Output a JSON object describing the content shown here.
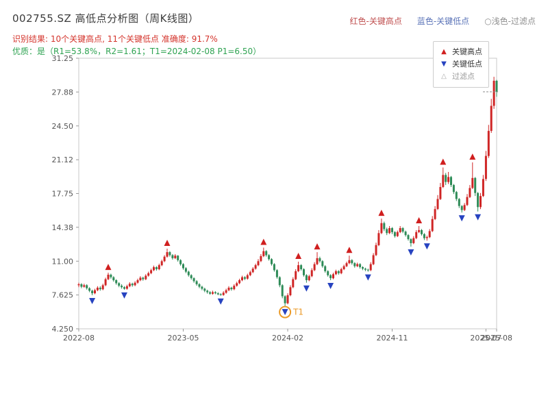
{
  "header": {
    "title": "002755.SZ 高低点分析图（周K线图）",
    "legend_top": [
      {
        "label": "红色-关键高点",
        "color": "#c05050"
      },
      {
        "label": "蓝色-关键低点",
        "color": "#5b74b8"
      },
      {
        "label": "○浅色-过滤点",
        "color": "#909090"
      }
    ],
    "result_line": "识别结果: 10个关键高点, 11个关键低点  准确度: 91.7%",
    "quality_line": "优质：是（R1=53.8%，R2=1.61；T1=2024-02-08 P1=6.50）"
  },
  "analysis": {
    "symbol": "002755.SZ",
    "key_high_count": 10,
    "key_low_count": 11,
    "accuracy": "91.7%",
    "r1": "53.8%",
    "r2": "1.61",
    "t1_date": "2024-02-08",
    "p1": "6.50"
  },
  "chart_data": {
    "type": "candlestick",
    "title": "002755.SZ 高低点分析图（周K线图）",
    "y_range": [
      4.25,
      31.25
    ],
    "y_ticks": [
      [
        31.25,
        "31.25"
      ],
      [
        27.88,
        "27.88"
      ],
      [
        24.5,
        "24.50"
      ],
      [
        21.12,
        "21.12"
      ],
      [
        17.75,
        "17.75"
      ],
      [
        14.38,
        "14.38"
      ],
      [
        11.0,
        "11.00"
      ],
      [
        7.625,
        "7.625"
      ],
      [
        4.25,
        "4.250"
      ]
    ],
    "x_ticks": [
      [
        0,
        "2022-08"
      ],
      [
        39,
        "2023-05"
      ],
      [
        78,
        "2024-02"
      ],
      [
        117,
        "2024-11"
      ],
      [
        152,
        "2025-07"
      ],
      [
        156,
        "2025-08"
      ]
    ],
    "up_color": "#cf2525",
    "down_color": "#2e8b57",
    "high_marker_color": "#d01f1f",
    "low_marker_color": "#2743c0",
    "candles": [
      [
        8.6,
        8.85,
        8.4,
        8.7
      ],
      [
        8.7,
        8.8,
        8.3,
        8.45
      ],
      [
        8.45,
        8.75,
        8.35,
        8.6
      ],
      [
        8.6,
        8.7,
        8.15,
        8.3
      ],
      [
        8.3,
        8.4,
        7.9,
        8.05
      ],
      [
        8.05,
        8.15,
        7.6,
        7.8
      ],
      [
        7.8,
        8.25,
        7.7,
        8.1
      ],
      [
        8.1,
        8.5,
        8.0,
        8.35
      ],
      [
        8.35,
        8.5,
        8.05,
        8.2
      ],
      [
        8.2,
        8.75,
        8.1,
        8.6
      ],
      [
        8.6,
        9.35,
        8.5,
        9.2
      ],
      [
        9.2,
        9.85,
        9.1,
        9.65
      ],
      [
        9.65,
        9.75,
        9.25,
        9.4
      ],
      [
        9.4,
        9.5,
        8.95,
        9.1
      ],
      [
        9.1,
        9.2,
        8.65,
        8.8
      ],
      [
        8.8,
        8.9,
        8.4,
        8.55
      ],
      [
        8.55,
        8.7,
        8.25,
        8.4
      ],
      [
        8.4,
        8.5,
        8.15,
        8.25
      ],
      [
        8.25,
        8.65,
        8.15,
        8.5
      ],
      [
        8.5,
        8.9,
        8.4,
        8.75
      ],
      [
        8.75,
        8.85,
        8.45,
        8.6
      ],
      [
        8.6,
        9.0,
        8.5,
        8.85
      ],
      [
        8.85,
        9.25,
        8.75,
        9.1
      ],
      [
        9.1,
        9.5,
        9.0,
        9.35
      ],
      [
        9.35,
        9.45,
        9.05,
        9.2
      ],
      [
        9.2,
        9.7,
        9.1,
        9.55
      ],
      [
        9.55,
        9.95,
        9.45,
        9.8
      ],
      [
        9.8,
        10.25,
        9.7,
        10.1
      ],
      [
        10.1,
        10.55,
        10.0,
        10.4
      ],
      [
        10.4,
        10.5,
        10.05,
        10.2
      ],
      [
        10.2,
        10.75,
        10.1,
        10.6
      ],
      [
        10.6,
        11.15,
        10.5,
        11.0
      ],
      [
        11.0,
        11.6,
        10.9,
        11.45
      ],
      [
        11.45,
        12.25,
        11.35,
        11.9
      ],
      [
        11.9,
        12.0,
        11.45,
        11.6
      ],
      [
        11.6,
        11.7,
        11.15,
        11.3
      ],
      [
        11.3,
        11.7,
        11.2,
        11.55
      ],
      [
        11.55,
        11.6,
        10.95,
        11.1
      ],
      [
        11.1,
        11.2,
        10.55,
        10.7
      ],
      [
        10.7,
        10.8,
        10.15,
        10.3
      ],
      [
        10.3,
        10.4,
        9.8,
        9.95
      ],
      [
        9.95,
        10.05,
        9.45,
        9.6
      ],
      [
        9.6,
        9.7,
        9.15,
        9.3
      ],
      [
        9.3,
        9.4,
        8.85,
        9.0
      ],
      [
        9.0,
        9.1,
        8.55,
        8.7
      ],
      [
        8.7,
        8.8,
        8.3,
        8.45
      ],
      [
        8.45,
        8.55,
        8.1,
        8.25
      ],
      [
        8.25,
        8.35,
        7.9,
        8.05
      ],
      [
        8.05,
        8.15,
        7.75,
        7.9
      ],
      [
        7.9,
        8.0,
        7.65,
        7.75
      ],
      [
        7.75,
        8.05,
        7.65,
        7.9
      ],
      [
        7.9,
        8.0,
        7.7,
        7.8
      ],
      [
        7.8,
        7.9,
        7.6,
        7.7
      ],
      [
        7.7,
        7.8,
        7.55,
        7.62
      ],
      [
        7.62,
        8.0,
        7.55,
        7.85
      ],
      [
        7.85,
        8.25,
        7.75,
        8.1
      ],
      [
        8.1,
        8.5,
        8.0,
        8.35
      ],
      [
        8.35,
        8.45,
        8.05,
        8.2
      ],
      [
        8.2,
        8.7,
        8.1,
        8.55
      ],
      [
        8.55,
        8.95,
        8.45,
        8.8
      ],
      [
        8.8,
        9.25,
        8.7,
        9.1
      ],
      [
        9.1,
        9.55,
        9.0,
        9.4
      ],
      [
        9.4,
        9.5,
        9.1,
        9.25
      ],
      [
        9.25,
        9.75,
        9.15,
        9.6
      ],
      [
        9.6,
        10.05,
        9.5,
        9.9
      ],
      [
        9.9,
        10.4,
        9.8,
        10.25
      ],
      [
        10.25,
        10.75,
        10.15,
        10.6
      ],
      [
        10.6,
        11.2,
        10.5,
        11.0
      ],
      [
        11.0,
        11.7,
        10.9,
        11.5
      ],
      [
        11.5,
        12.35,
        11.4,
        12.0
      ],
      [
        12.0,
        12.1,
        11.45,
        11.6
      ],
      [
        11.6,
        11.7,
        11.05,
        11.2
      ],
      [
        11.2,
        11.3,
        10.55,
        10.7
      ],
      [
        10.7,
        10.8,
        9.95,
        10.1
      ],
      [
        10.1,
        10.2,
        9.25,
        9.4
      ],
      [
        9.4,
        9.5,
        8.4,
        8.6
      ],
      [
        8.6,
        8.7,
        7.3,
        7.5
      ],
      [
        7.5,
        7.6,
        6.5,
        6.8
      ],
      [
        6.8,
        7.8,
        6.7,
        7.6
      ],
      [
        7.6,
        8.6,
        7.5,
        8.4
      ],
      [
        8.4,
        9.4,
        8.3,
        9.2
      ],
      [
        9.2,
        10.2,
        9.1,
        10.0
      ],
      [
        10.0,
        10.95,
        9.9,
        10.6
      ],
      [
        10.6,
        10.7,
        10.05,
        10.2
      ],
      [
        10.2,
        10.3,
        9.45,
        9.6
      ],
      [
        9.6,
        9.7,
        8.85,
        9.1
      ],
      [
        9.1,
        9.65,
        9.0,
        9.5
      ],
      [
        9.5,
        10.3,
        9.4,
        10.1
      ],
      [
        10.1,
        10.9,
        10.0,
        10.7
      ],
      [
        10.7,
        11.9,
        10.6,
        11.3
      ],
      [
        11.3,
        11.45,
        10.85,
        11.0
      ],
      [
        11.0,
        11.1,
        10.35,
        10.5
      ],
      [
        10.5,
        10.6,
        9.85,
        10.0
      ],
      [
        10.0,
        10.1,
        9.45,
        9.6
      ],
      [
        9.6,
        9.7,
        9.1,
        9.3
      ],
      [
        9.3,
        9.85,
        9.2,
        9.7
      ],
      [
        9.7,
        10.15,
        9.6,
        10.0
      ],
      [
        10.0,
        10.1,
        9.65,
        9.8
      ],
      [
        9.8,
        10.35,
        9.7,
        10.2
      ],
      [
        10.2,
        10.65,
        10.1,
        10.5
      ],
      [
        10.5,
        10.95,
        10.4,
        10.8
      ],
      [
        10.8,
        11.55,
        10.7,
        11.1
      ],
      [
        11.1,
        11.2,
        10.65,
        10.8
      ],
      [
        10.8,
        10.9,
        10.35,
        10.5
      ],
      [
        10.5,
        10.85,
        10.4,
        10.7
      ],
      [
        10.7,
        10.8,
        10.25,
        10.4
      ],
      [
        10.4,
        10.5,
        10.1,
        10.25
      ],
      [
        10.25,
        10.35,
        10.0,
        10.15
      ],
      [
        10.15,
        10.25,
        9.95,
        10.1
      ],
      [
        10.1,
        10.9,
        10.0,
        10.7
      ],
      [
        10.7,
        11.8,
        10.6,
        11.6
      ],
      [
        11.6,
        12.85,
        11.5,
        12.6
      ],
      [
        12.6,
        14.1,
        12.5,
        13.8
      ],
      [
        13.8,
        15.25,
        13.7,
        14.8
      ],
      [
        14.8,
        14.95,
        14.0,
        14.2
      ],
      [
        14.2,
        14.35,
        13.6,
        13.8
      ],
      [
        13.8,
        14.5,
        13.7,
        14.3
      ],
      [
        14.3,
        14.4,
        13.7,
        13.9
      ],
      [
        13.9,
        14.0,
        13.35,
        13.5
      ],
      [
        13.5,
        14.05,
        13.4,
        13.9
      ],
      [
        13.9,
        14.5,
        13.8,
        14.3
      ],
      [
        14.3,
        14.4,
        13.8,
        13.95
      ],
      [
        13.95,
        14.05,
        13.45,
        13.6
      ],
      [
        13.6,
        13.7,
        13.05,
        13.2
      ],
      [
        13.2,
        13.3,
        12.45,
        12.8
      ],
      [
        12.8,
        13.5,
        12.7,
        13.3
      ],
      [
        13.3,
        14.1,
        13.2,
        13.9
      ],
      [
        13.9,
        14.5,
        13.8,
        14.1
      ],
      [
        14.1,
        14.2,
        13.55,
        13.7
      ],
      [
        13.7,
        13.8,
        13.1,
        13.3
      ],
      [
        13.3,
        13.55,
        13.05,
        13.4
      ],
      [
        13.4,
        14.2,
        13.3,
        14.0
      ],
      [
        14.0,
        15.5,
        13.9,
        15.2
      ],
      [
        15.2,
        16.5,
        15.1,
        16.2
      ],
      [
        16.2,
        17.6,
        16.1,
        17.2
      ],
      [
        17.2,
        18.8,
        17.1,
        18.4
      ],
      [
        18.4,
        20.35,
        18.3,
        19.6
      ],
      [
        19.6,
        19.8,
        18.6,
        18.9
      ],
      [
        18.9,
        19.9,
        18.7,
        19.4
      ],
      [
        19.4,
        19.5,
        18.4,
        18.6
      ],
      [
        18.6,
        18.7,
        17.7,
        17.9
      ],
      [
        17.9,
        18.0,
        17.0,
        17.2
      ],
      [
        17.2,
        17.3,
        16.3,
        16.5
      ],
      [
        16.5,
        16.6,
        15.85,
        16.1
      ],
      [
        16.1,
        16.8,
        16.0,
        16.6
      ],
      [
        16.6,
        17.7,
        16.5,
        17.4
      ],
      [
        17.4,
        18.6,
        17.3,
        18.3
      ],
      [
        18.3,
        20.85,
        18.2,
        19.3
      ],
      [
        19.3,
        19.4,
        17.5,
        17.8
      ],
      [
        17.8,
        17.9,
        15.95,
        16.4
      ],
      [
        16.4,
        17.8,
        16.2,
        17.5
      ],
      [
        17.5,
        19.6,
        17.4,
        19.2
      ],
      [
        19.2,
        22.0,
        19.0,
        21.5
      ],
      [
        21.5,
        24.6,
        21.3,
        24.0
      ],
      [
        24.0,
        27.2,
        23.8,
        26.5
      ],
      [
        26.5,
        29.4,
        26.2,
        29.0
      ],
      [
        29.0,
        29.1,
        27.4,
        27.9
      ]
    ],
    "key_highs": [
      [
        11,
        9.85
      ],
      [
        33,
        12.25
      ],
      [
        69,
        12.35
      ],
      [
        82,
        10.95
      ],
      [
        89,
        11.9
      ],
      [
        101,
        11.55
      ],
      [
        113,
        15.25
      ],
      [
        127,
        14.5
      ],
      [
        136,
        20.35
      ],
      [
        147,
        20.85
      ]
    ],
    "key_lows": [
      [
        5,
        7.6
      ],
      [
        17,
        8.15
      ],
      [
        53,
        7.55
      ],
      [
        77,
        6.5
      ],
      [
        85,
        8.85
      ],
      [
        94,
        9.1
      ],
      [
        108,
        9.95
      ],
      [
        124,
        12.45
      ],
      [
        130,
        13.05
      ],
      [
        143,
        15.85
      ],
      [
        149,
        15.95
      ]
    ],
    "filtered_points": [],
    "t1": {
      "week": 77,
      "price": 6.5,
      "label": "T1",
      "color": "#eb9a27"
    },
    "last_price_line": 27.9,
    "legend_box": {
      "items": [
        {
          "label": "关键高点",
          "glyph": "▲",
          "color": "#d01f1f"
        },
        {
          "label": "关键低点",
          "glyph": "▼",
          "color": "#2743c0"
        },
        {
          "label": "过滤点",
          "glyph": "△",
          "color": "#aaaaaa"
        }
      ]
    }
  }
}
